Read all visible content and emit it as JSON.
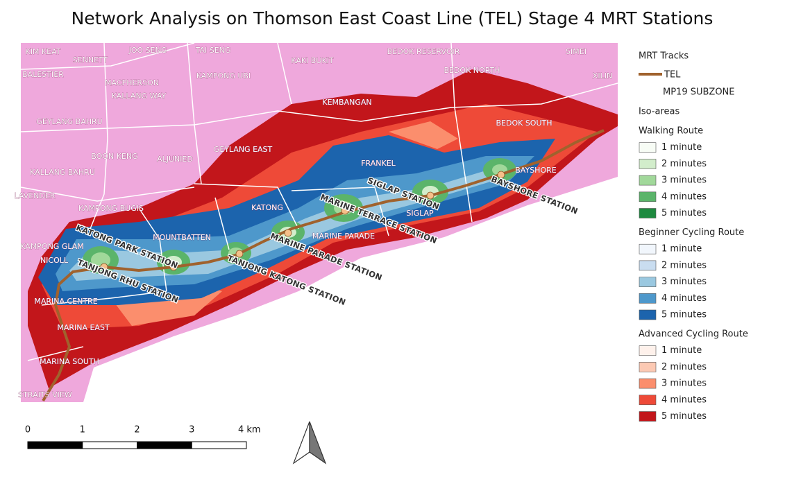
{
  "title": "Network Analysis on Thomson East Coast Line (TEL) Stage 4 MRT Stations",
  "map": {
    "subzones": [
      "KIM KEAT",
      "SENNETT",
      "JOO SENG",
      "TAI SENG",
      "KAKI BUKIT",
      "BEDOK RESERVOIR",
      "SIMEI",
      "BALESTIER",
      "MACPHERSON",
      "KAMPONG UBI",
      "BEDOK NORTH",
      "XILIN",
      "KALLANG WAY",
      "KEMBANGAN",
      "GEYLANG BAHRU",
      "BEDOK SOUTH",
      "BOON KENG",
      "ALJUNIED",
      "GEYLANG EAST",
      "FRANKEL",
      "BAYSHORE",
      "KALLANG BAHRU",
      "LAVENDER",
      "KAMPONG BUGIS",
      "KATONG",
      "SIGLAP",
      "MOUNTBATTEN",
      "MARINE PARADE",
      "KAMPONG GLAM",
      "NICOLL",
      "MARINA CENTRE",
      "MARINA EAST",
      "MARINA SOUTH",
      "STRAITS VIEW"
    ],
    "stations": [
      "KATONG PARK STATION",
      "TANJONG RHU STATION",
      "TANJONG KATONG STATION",
      "MARINE PARADE STATION",
      "MARINE TERRACE STATION",
      "SIGLAP STATION",
      "BAYSHORE STATION"
    ]
  },
  "legend": {
    "tracks_title": "MRT Tracks",
    "track": "TEL",
    "track_color": "#a0622d",
    "subzone": "MP19 SUBZONE",
    "iso_title": "Iso-areas",
    "groups": [
      {
        "title": "Walking Route",
        "items": [
          {
            "label": "1 minute",
            "color": "#f7fcf5"
          },
          {
            "label": "2 minutes",
            "color": "#d2edcb"
          },
          {
            "label": "3 minutes",
            "color": "#a1d89a"
          },
          {
            "label": "4 minutes",
            "color": "#5bb46a"
          },
          {
            "label": "5 minutes",
            "color": "#1e8a3f"
          }
        ]
      },
      {
        "title": "Beginner Cycling Route",
        "items": [
          {
            "label": "1 minute",
            "color": "#f1f6fc"
          },
          {
            "label": "2 minutes",
            "color": "#c9ddf0"
          },
          {
            "label": "3 minutes",
            "color": "#9ac8e0"
          },
          {
            "label": "4 minutes",
            "color": "#4e98cb"
          },
          {
            "label": "5 minutes",
            "color": "#1c64ad"
          }
        ]
      },
      {
        "title": "Advanced Cycling Route",
        "items": [
          {
            "label": "1 minute",
            "color": "#fef1eb"
          },
          {
            "label": "2 minutes",
            "color": "#fcc9b3"
          },
          {
            "label": "3 minutes",
            "color": "#fb8e6d"
          },
          {
            "label": "4 minutes",
            "color": "#ee4a38"
          },
          {
            "label": "5 minutes",
            "color": "#c2161b"
          }
        ]
      }
    ]
  },
  "scale_bar": {
    "ticks": [
      "0",
      "1",
      "2",
      "3",
      "4 km"
    ]
  }
}
